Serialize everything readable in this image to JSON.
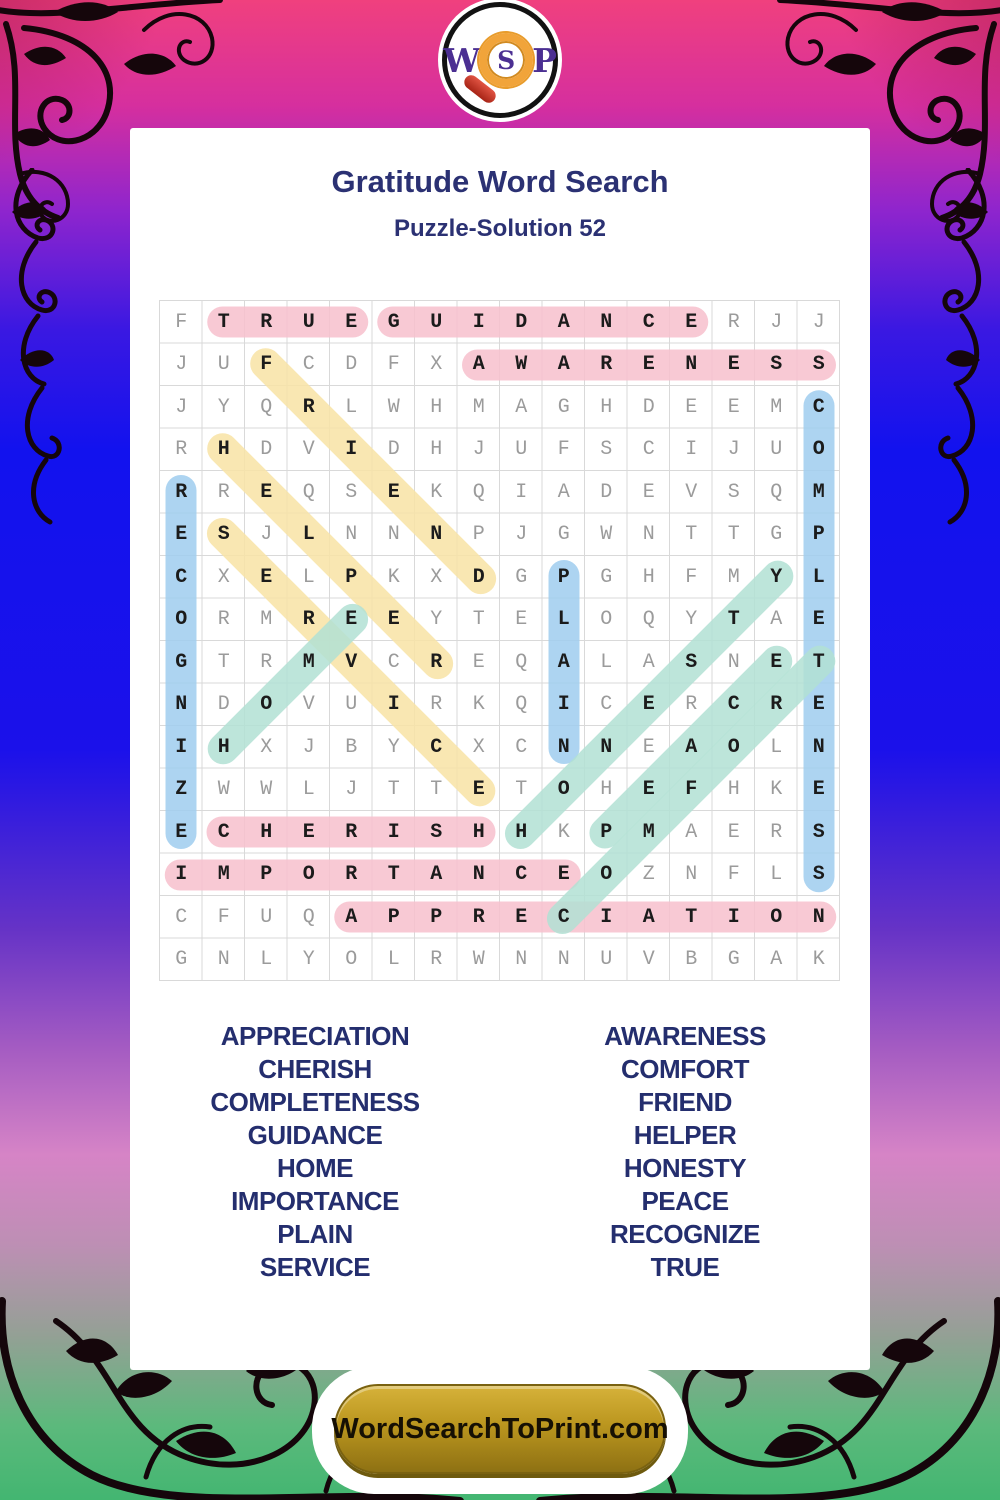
{
  "logo": {
    "w": "W",
    "s": "S",
    "p": "P"
  },
  "header": {
    "title": "Gratitude Word Search",
    "subtitle": "Puzzle-Solution 52"
  },
  "puzzle": {
    "grid_size": 16,
    "grid": [
      "FTRUEGUIDANCERJJ",
      "JUFCDFXAWARENESS",
      "JYQRLWHMAGHDEEMC",
      "RHDVIDHJUFSCIJUO",
      "RREQSEKQIADEVSQM",
      "ESJLNNNPJGWNTTGP",
      "CXELPKXDGPGHFMYL",
      "ORMREEYTELOQYTAE",
      "GTRMVCREQALASNET",
      "NDOVUIRKQICERCRE",
      "IHXJBYCXCNNEAOLN",
      "ZWWLJTTETOHEFHKE",
      "ECHERISHHKPMAERS",
      "IMPORTANCEOZNFLS",
      "CFUQAPPRECIATION",
      "GNLYOLRWNNUVBGAK"
    ],
    "words": [
      {
        "text": "TRUE",
        "row": 1,
        "col": 2,
        "dir": "H",
        "color": "pink"
      },
      {
        "text": "GUIDANCE",
        "row": 1,
        "col": 6,
        "dir": "H",
        "color": "pink"
      },
      {
        "text": "AWARENESS",
        "row": 2,
        "col": 8,
        "dir": "H",
        "color": "pink"
      },
      {
        "text": "CHERISH",
        "row": 13,
        "col": 2,
        "dir": "H",
        "color": "pink"
      },
      {
        "text": "IMPORTANCE",
        "row": 14,
        "col": 1,
        "dir": "H",
        "color": "pink"
      },
      {
        "text": "APPRECIATION",
        "row": 15,
        "col": 5,
        "dir": "H",
        "color": "pink"
      },
      {
        "text": "FRIEND",
        "row": 2,
        "col": 3,
        "dir": "DR",
        "color": "yellow"
      },
      {
        "text": "HELPER",
        "row": 4,
        "col": 2,
        "dir": "DR",
        "color": "yellow"
      },
      {
        "text": "SERVICE",
        "row": 6,
        "col": 2,
        "dir": "DR",
        "color": "yellow"
      },
      {
        "text": "RECOGNIZE",
        "row": 5,
        "col": 1,
        "dir": "V",
        "color": "blue"
      },
      {
        "text": "COMPLETENESS",
        "row": 3,
        "col": 16,
        "dir": "V",
        "color": "blue"
      },
      {
        "text": "PLAIN",
        "row": 7,
        "col": 10,
        "dir": "V",
        "color": "blue"
      },
      {
        "text": "HOME",
        "row": 11,
        "col": 2,
        "dir": "UR",
        "color": "teal"
      },
      {
        "text": "HONESTY",
        "row": 13,
        "col": 9,
        "dir": "UR",
        "color": "teal"
      },
      {
        "text": "PEACE",
        "row": 13,
        "col": 11,
        "dir": "UR",
        "color": "teal"
      },
      {
        "text": "COMFORT",
        "row": 15,
        "col": 10,
        "dir": "UR",
        "color": "teal"
      }
    ],
    "colors": {
      "pink": "#f7c0cc",
      "yellow": "#f8e3a4",
      "blue": "#9fcdee",
      "teal": "#b2e0d4"
    }
  },
  "word_list": {
    "left": [
      "APPRECIATION",
      "CHERISH",
      "COMPLETENESS",
      "GUIDANCE",
      "HOME",
      "IMPORTANCE",
      "PLAIN",
      "SERVICE"
    ],
    "right": [
      "AWARENESS",
      "COMFORT",
      "FRIEND",
      "HELPER",
      "HONESTY",
      "PEACE",
      "RECOGNIZE",
      "TRUE"
    ]
  },
  "footer": {
    "button_label": "WordSearchToPrint.com"
  },
  "theme": {
    "heading_navy": "#2b3173",
    "gold": "#bb961f",
    "logo_purple": "#4b2f92",
    "magnifier_orange": "#f1a43a",
    "handle_red": "#c23524"
  }
}
